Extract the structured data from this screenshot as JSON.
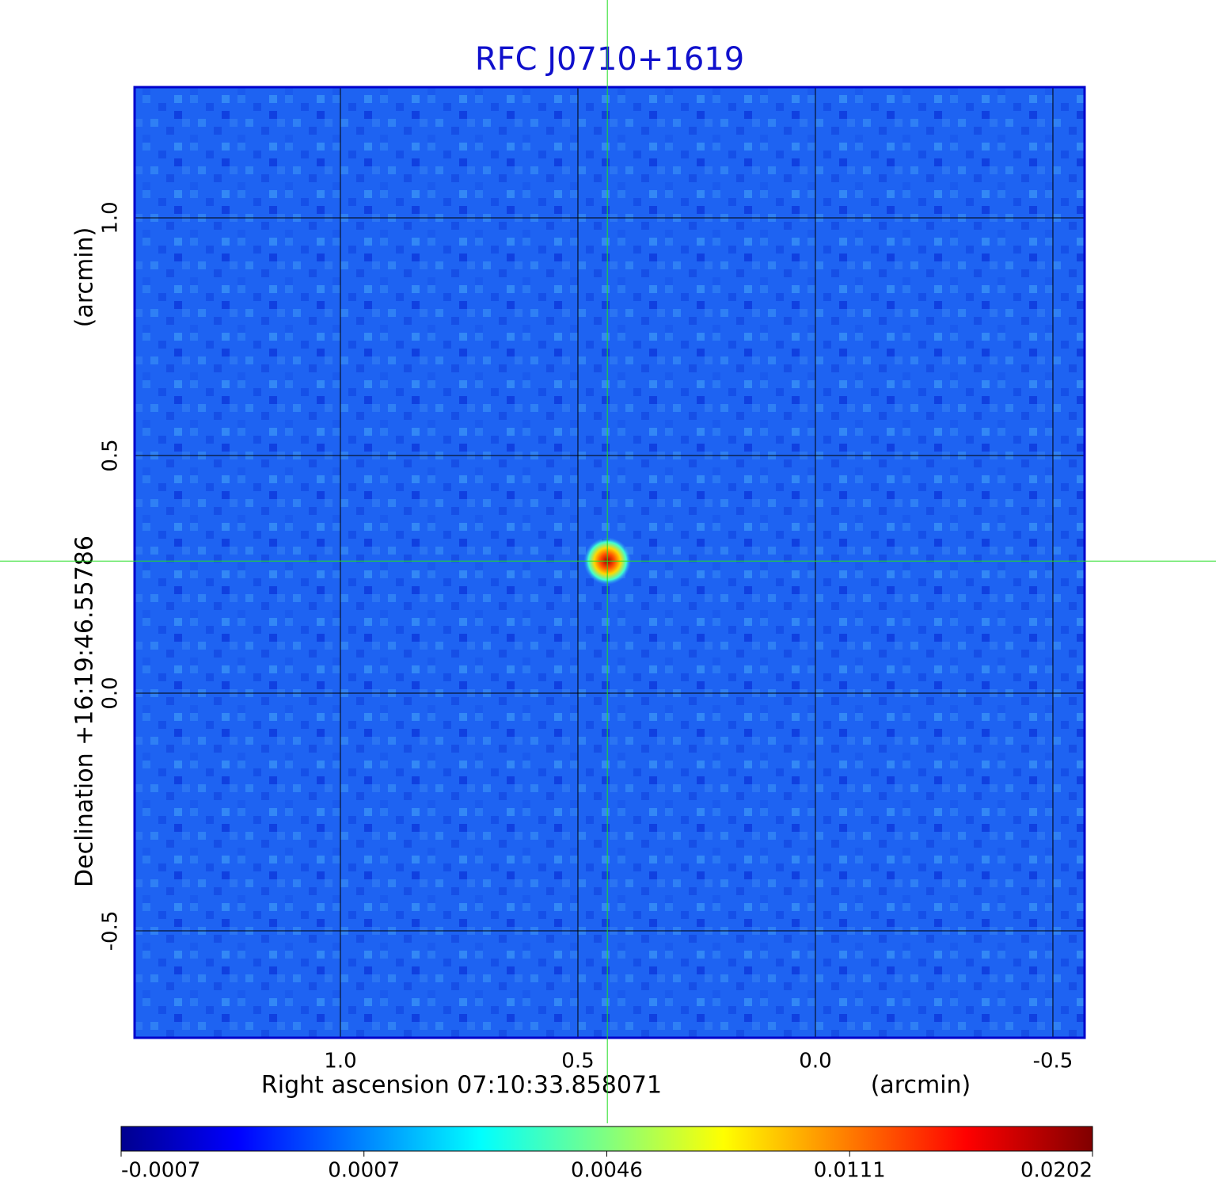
{
  "chart_data": {
    "type": "image",
    "title": "RFC J0710+1619",
    "xlabel": "Right ascension  07:10:33.858071",
    "xunit": "(arcmin)",
    "ylabel": "Declination  +16:19:46.55786",
    "yunit": "(arcmin)",
    "xlim": [
      1.4333,
      -0.5667
    ],
    "ylim": [
      -0.725,
      1.275
    ],
    "xticks": [
      {
        "value": 1,
        "label": "1.0"
      },
      0.5,
      {
        "value": 0,
        "label": "0.0"
      },
      -0.5
    ],
    "yticks": [
      {
        "value": -0.5,
        "label": "-0.5"
      },
      {
        "value": 0,
        "label": "0.0"
      },
      0.5,
      {
        "value": 1,
        "label": "1.0"
      }
    ],
    "grid": true,
    "source": {
      "x": 0.438,
      "y": 0.278,
      "peak": 0.0202
    },
    "colormap": "jet",
    "colorbar": {
      "lim": [
        -0.0007,
        0.0202
      ],
      "ticks": [
        -0.0007,
        0.0007,
        0.0046,
        0.0111,
        0.0202
      ]
    }
  }
}
